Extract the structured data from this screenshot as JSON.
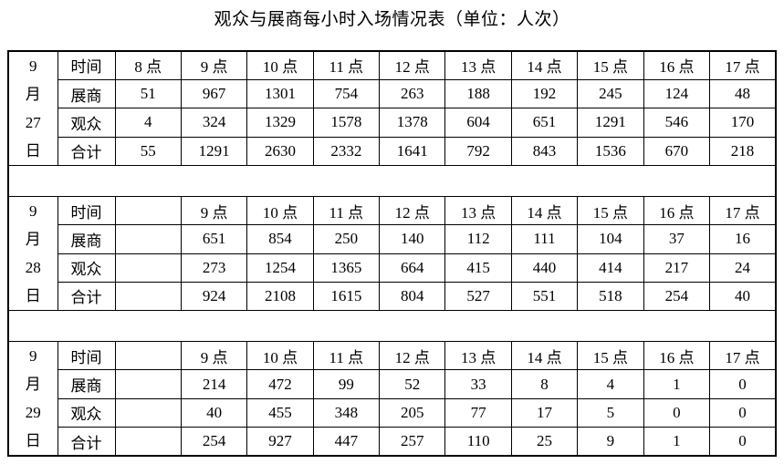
{
  "title": "观众与展商每小时入场情况表（单位：人次）",
  "tables": [
    {
      "date_lines": [
        "9",
        "月",
        "27",
        "日"
      ],
      "rows": [
        {
          "label": "时间",
          "cells": [
            "8 点",
            "9 点",
            "10 点",
            "11 点",
            "12 点",
            "13 点",
            "14 点",
            "15 点",
            "16 点",
            "17 点"
          ]
        },
        {
          "label": "展商",
          "cells": [
            "51",
            "967",
            "1301",
            "754",
            "263",
            "188",
            "192",
            "245",
            "124",
            "48"
          ]
        },
        {
          "label": "观众",
          "cells": [
            "4",
            "324",
            "1329",
            "1578",
            "1378",
            "604",
            "651",
            "1291",
            "546",
            "170"
          ]
        },
        {
          "label": "合计",
          "cells": [
            "55",
            "1291",
            "2630",
            "2332",
            "1641",
            "792",
            "843",
            "1536",
            "670",
            "218"
          ]
        }
      ]
    },
    {
      "date_lines": [
        "9",
        "月",
        "28",
        "日"
      ],
      "rows": [
        {
          "label": "时间",
          "cells": [
            "",
            "9 点",
            "10 点",
            "11 点",
            "12 点",
            "13 点",
            "14 点",
            "15 点",
            "16 点",
            "17 点"
          ]
        },
        {
          "label": "展商",
          "cells": [
            "",
            "651",
            "854",
            "250",
            "140",
            "112",
            "111",
            "104",
            "37",
            "16"
          ]
        },
        {
          "label": "观众",
          "cells": [
            "",
            "273",
            "1254",
            "1365",
            "664",
            "415",
            "440",
            "414",
            "217",
            "24"
          ]
        },
        {
          "label": "合计",
          "cells": [
            "",
            "924",
            "2108",
            "1615",
            "804",
            "527",
            "551",
            "518",
            "254",
            "40"
          ]
        }
      ]
    },
    {
      "date_lines": [
        "9",
        "月",
        "29",
        "日"
      ],
      "rows": [
        {
          "label": "时间",
          "cells": [
            "",
            "9 点",
            "10 点",
            "11 点",
            "12 点",
            "13 点",
            "14 点",
            "15 点",
            "16 点",
            "17 点"
          ]
        },
        {
          "label": "展商",
          "cells": [
            "",
            "214",
            "472",
            "99",
            "52",
            "33",
            "8",
            "4",
            "1",
            "0"
          ]
        },
        {
          "label": "观众",
          "cells": [
            "",
            "40",
            "455",
            "348",
            "205",
            "77",
            "17",
            "5",
            "0",
            "0"
          ]
        },
        {
          "label": "合计",
          "cells": [
            "",
            "254",
            "927",
            "447",
            "257",
            "110",
            "25",
            "9",
            "1",
            "0"
          ]
        }
      ]
    }
  ]
}
